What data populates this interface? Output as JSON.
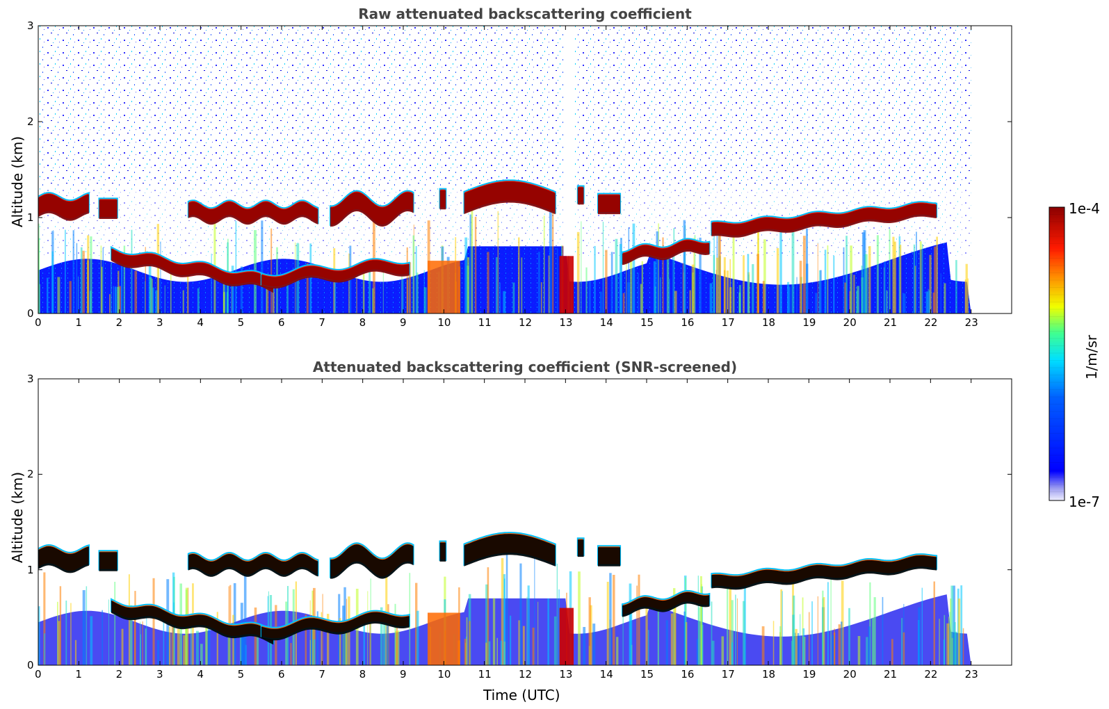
{
  "chart_data": [
    {
      "type": "heatmap",
      "title": "Raw attenuated backscattering coefficient",
      "xlabel": "",
      "ylabel": "Altitude (km)",
      "xlim": [
        0,
        24
      ],
      "ylim": [
        0,
        3
      ],
      "x_ticks": [
        "0",
        "1",
        "2",
        "3",
        "4",
        "5",
        "6",
        "7",
        "8",
        "9",
        "10",
        "11",
        "12",
        "13",
        "14",
        "15",
        "16",
        "17",
        "18",
        "19",
        "20",
        "21",
        "22",
        "23"
      ],
      "y_ticks": [
        "0",
        "1",
        "2",
        "3"
      ],
      "data_end_time": 23,
      "missing_data_interval": [
        12.95,
        13.2
      ],
      "features": [
        {
          "time": [
            0,
            1.3
          ],
          "cloud_base_km": 1.0,
          "cloud_top_km": 1.25
        },
        {
          "time": [
            1.8,
            6.0
          ],
          "layer_km": [
            0.25,
            0.55
          ]
        },
        {
          "time": [
            3.6,
            7.0
          ],
          "cloud_base_km": 0.95,
          "cloud_top_km": 1.15
        },
        {
          "time": [
            10.5,
            12.8
          ],
          "cloud_base_km": 1.0,
          "cloud_top_km": 1.4
        },
        {
          "time": [
            15.0,
            16.6
          ],
          "layer_km": [
            0.55,
            0.75
          ]
        },
        {
          "time": [
            16.6,
            22.2
          ],
          "layer_km": [
            0.8,
            1.15
          ]
        }
      ]
    },
    {
      "type": "heatmap",
      "title": "Attenuated backscattering coefficient (SNR-screened)",
      "xlabel": "Time (UTC)",
      "ylabel": "Altitude (km)",
      "xlim": [
        0,
        24
      ],
      "ylim": [
        0,
        3
      ],
      "x_ticks": [
        "0",
        "1",
        "2",
        "3",
        "4",
        "5",
        "6",
        "7",
        "8",
        "9",
        "10",
        "11",
        "12",
        "13",
        "14",
        "15",
        "16",
        "17",
        "18",
        "19",
        "20",
        "21",
        "22",
        "23"
      ],
      "y_ticks": [
        "0",
        "1",
        "2",
        "3"
      ],
      "data_end_time": 23
    }
  ],
  "colorbar": {
    "label": "1/m/sr",
    "max_label": "1e-4",
    "min_label": "1e-7",
    "scale": "log",
    "colors": [
      "#ffffff",
      "#c8c8f5",
      "#0000ff",
      "#00c8ff",
      "#00ffaa",
      "#ffff00",
      "#ff8000",
      "#ff0000",
      "#8b0000"
    ]
  }
}
